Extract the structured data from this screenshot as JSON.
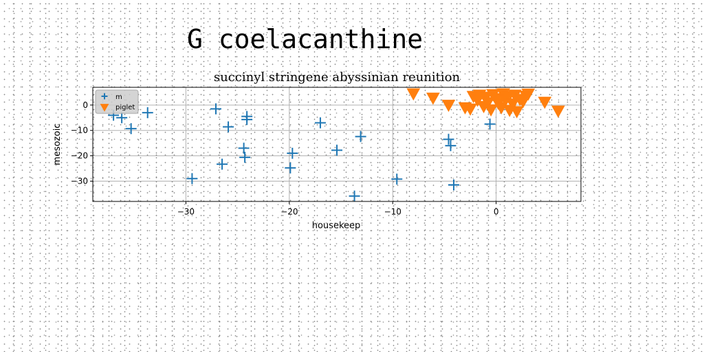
{
  "suptitle": "G coelacanthine",
  "chart_data": {
    "type": "scatter",
    "title": "succinyl stringene abyssinian reunition",
    "xlabel": "housekeep",
    "ylabel": "mesozoic",
    "xlim": [
      -39,
      8.2
    ],
    "ylim": [
      -38,
      7
    ],
    "xticks": [
      -30,
      -20,
      -10,
      0
    ],
    "yticks": [
      0,
      -10,
      -20,
      -30
    ],
    "xtick_labels": [
      "−30",
      "−20",
      "−10",
      "0"
    ],
    "ytick_labels": [
      "0",
      "−10",
      "−20",
      "−30"
    ],
    "grid": true,
    "legend_position": "top-left",
    "series": [
      {
        "name": "m",
        "marker": "plus",
        "color": "#1f77b4",
        "points": [
          [
            -37.0,
            -4.0
          ],
          [
            -36.2,
            -5.0
          ],
          [
            -35.3,
            -9.3
          ],
          [
            -33.7,
            -3.0
          ],
          [
            -29.4,
            -29.0
          ],
          [
            -27.1,
            -1.5
          ],
          [
            -26.5,
            -23.3
          ],
          [
            -25.9,
            -8.6
          ],
          [
            -24.4,
            -17.0
          ],
          [
            -24.3,
            -20.6
          ],
          [
            -24.1,
            -4.5
          ],
          [
            -24.1,
            -5.7
          ],
          [
            -19.7,
            -19.0
          ],
          [
            -19.9,
            -24.8
          ],
          [
            -17.0,
            -7.0
          ],
          [
            -15.4,
            -17.8
          ],
          [
            -13.1,
            -12.4
          ],
          [
            -13.7,
            -35.9
          ],
          [
            -9.6,
            -29.2
          ],
          [
            -4.6,
            -13.5
          ],
          [
            -4.4,
            -16.0
          ],
          [
            -4.1,
            -31.5
          ],
          [
            -0.6,
            -7.5
          ]
        ]
      },
      {
        "name": "piglet",
        "marker": "triangle-down",
        "color": "#ff7f0e",
        "points": [
          [
            -8.0,
            4.5
          ],
          [
            -6.1,
            2.8
          ],
          [
            -4.6,
            0.0
          ],
          [
            -3.0,
            -1.0
          ],
          [
            -2.5,
            -1.5
          ],
          [
            -2.2,
            3.5
          ],
          [
            -1.8,
            2.0
          ],
          [
            -1.6,
            4.0
          ],
          [
            -1.2,
            -0.5
          ],
          [
            -1.0,
            3.2
          ],
          [
            -0.8,
            1.0
          ],
          [
            -0.5,
            -1.8
          ],
          [
            -0.3,
            4.2
          ],
          [
            0.0,
            2.6
          ],
          [
            0.2,
            0.8
          ],
          [
            0.5,
            -1.0
          ],
          [
            0.7,
            4.5
          ],
          [
            0.9,
            2.0
          ],
          [
            1.2,
            3.4
          ],
          [
            1.3,
            -2.0
          ],
          [
            1.6,
            0.5
          ],
          [
            1.8,
            4.0
          ],
          [
            2.0,
            -2.5
          ],
          [
            2.3,
            2.3
          ],
          [
            2.6,
            1.4
          ],
          [
            2.9,
            3.6
          ],
          [
            3.1,
            4.4
          ],
          [
            4.7,
            1.2
          ],
          [
            6.0,
            -2.3
          ]
        ]
      }
    ]
  }
}
